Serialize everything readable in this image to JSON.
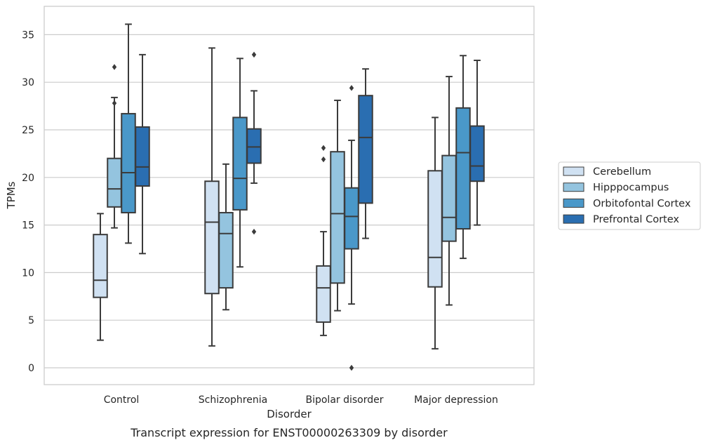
{
  "caption": "Transcript expression for ENST00000263309 by disorder",
  "chart_data": {
    "type": "box",
    "xlabel": "Disorder",
    "ylabel": "TPMs",
    "ylim": [
      -1.8,
      37.5
    ],
    "yticks": [
      0,
      5,
      10,
      15,
      20,
      25,
      30,
      35
    ],
    "grid": "horizontal",
    "legend_position": "right",
    "categories": [
      "Control",
      "Schizophrenia",
      "Bipolar disorder",
      "Major depression"
    ],
    "series": [
      {
        "name": "Cerebellum",
        "color": "#d0e1f2",
        "boxes": [
          {
            "whisker_low": 2.9,
            "q1": 7.4,
            "median": 9.2,
            "q3": 14.0,
            "whisker_high": 16.2,
            "outliers": []
          },
          {
            "whisker_low": 2.3,
            "q1": 7.8,
            "median": 15.3,
            "q3": 19.6,
            "whisker_high": 33.6,
            "outliers": []
          },
          {
            "whisker_low": 3.4,
            "q1": 4.8,
            "median": 8.4,
            "q3": 10.7,
            "whisker_high": 14.3,
            "outliers": [
              21.9,
              23.1
            ]
          },
          {
            "whisker_low": 2.0,
            "q1": 8.5,
            "median": 11.6,
            "q3": 20.7,
            "whisker_high": 26.3,
            "outliers": []
          }
        ]
      },
      {
        "name": "Hipppocampus",
        "color": "#94c4df",
        "boxes": [
          {
            "whisker_low": 14.7,
            "q1": 16.9,
            "median": 18.8,
            "q3": 22.0,
            "whisker_high": 28.4,
            "outliers": [
              27.8,
              31.6
            ]
          },
          {
            "whisker_low": 6.1,
            "q1": 8.4,
            "median": 14.1,
            "q3": 16.3,
            "whisker_high": 21.4,
            "outliers": []
          },
          {
            "whisker_low": 6.0,
            "q1": 8.9,
            "median": 16.2,
            "q3": 22.7,
            "whisker_high": 28.1,
            "outliers": []
          },
          {
            "whisker_low": 6.6,
            "q1": 13.3,
            "median": 15.8,
            "q3": 22.3,
            "whisker_high": 30.6,
            "outliers": []
          }
        ]
      },
      {
        "name": "Orbitofontal Cortex",
        "color": "#4a98c9",
        "boxes": [
          {
            "whisker_low": 13.1,
            "q1": 16.3,
            "median": 20.5,
            "q3": 26.7,
            "whisker_high": 36.1,
            "outliers": []
          },
          {
            "whisker_low": 10.6,
            "q1": 16.6,
            "median": 19.9,
            "q3": 26.3,
            "whisker_high": 32.5,
            "outliers": []
          },
          {
            "whisker_low": 6.7,
            "q1": 12.5,
            "median": 15.9,
            "q3": 18.9,
            "whisker_high": 23.9,
            "outliers": [
              0.0,
              29.4
            ]
          },
          {
            "whisker_low": 11.5,
            "q1": 14.6,
            "median": 22.6,
            "q3": 27.3,
            "whisker_high": 32.8,
            "outliers": []
          }
        ]
      },
      {
        "name": "Prefrontal Cortex",
        "color": "#2a6eb1",
        "boxes": [
          {
            "whisker_low": 12.0,
            "q1": 19.1,
            "median": 21.1,
            "q3": 25.3,
            "whisker_high": 32.9,
            "outliers": []
          },
          {
            "whisker_low": 19.4,
            "q1": 21.5,
            "median": 23.2,
            "q3": 25.1,
            "whisker_high": 29.1,
            "outliers": [
              14.3,
              32.9
            ]
          },
          {
            "whisker_low": 13.6,
            "q1": 17.3,
            "median": 24.2,
            "q3": 28.6,
            "whisker_high": 31.4,
            "outliers": []
          },
          {
            "whisker_low": 15.0,
            "q1": 19.6,
            "median": 21.2,
            "q3": 25.4,
            "whisker_high": 32.3,
            "outliers": []
          }
        ]
      }
    ]
  }
}
